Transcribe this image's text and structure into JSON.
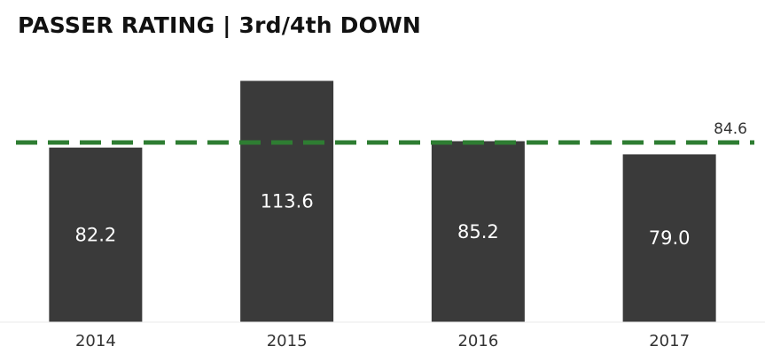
{
  "chart_data": {
    "type": "bar",
    "title": "PASSER RATING | 3rd/4th DOWN",
    "categories": [
      "2014",
      "2015",
      "2016",
      "2017"
    ],
    "values": [
      82.2,
      113.6,
      85.2,
      79.0
    ],
    "value_labels": [
      "82.2",
      "113.6",
      "85.2",
      "79.0"
    ],
    "reference_line": {
      "value": 84.6,
      "label": "84.6",
      "style": "dashed",
      "color": "#2e7d32"
    },
    "bar_color": "#3a3a3a",
    "ylim": [
      0,
      125
    ],
    "grid": false
  }
}
